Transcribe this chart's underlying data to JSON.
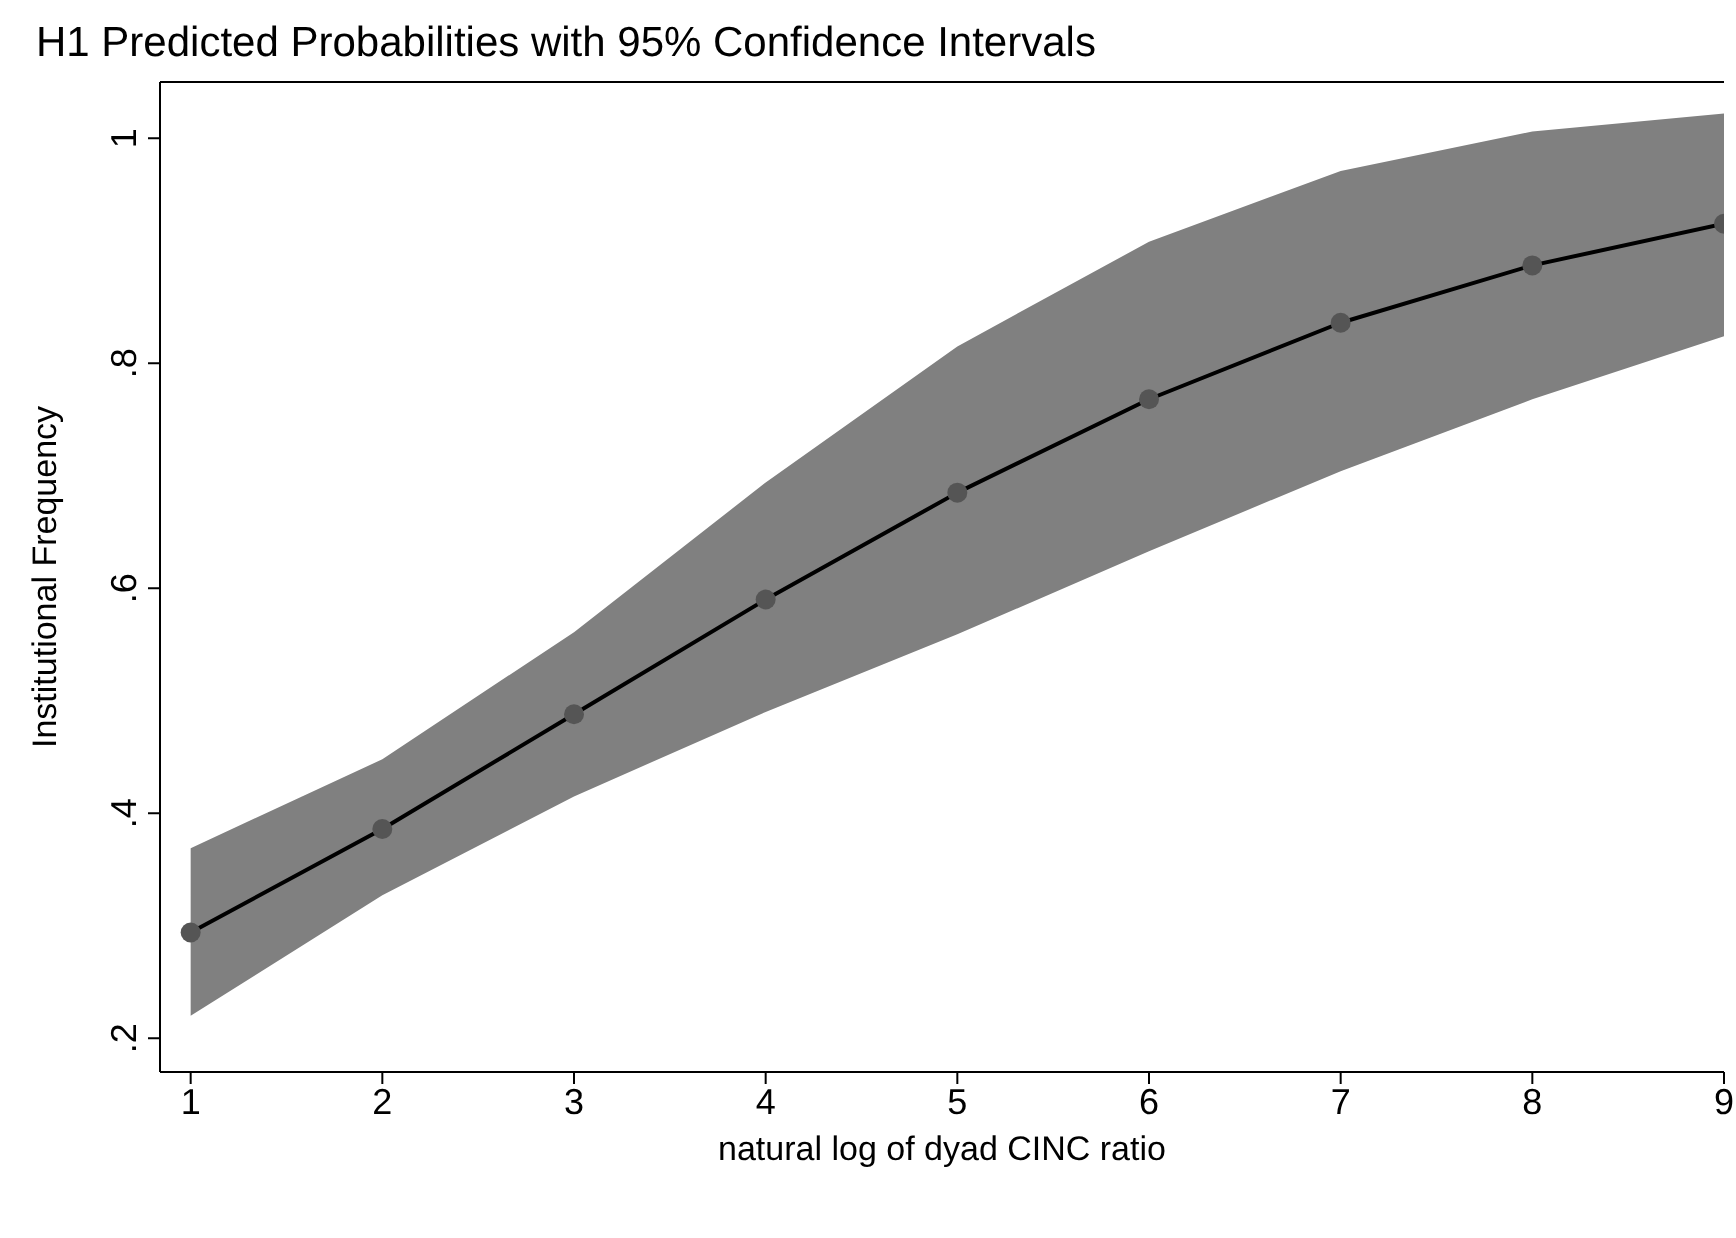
{
  "chart_data": {
    "type": "line",
    "title": "H1 Predicted Probabilities with 95% Confidence Intervals",
    "xlabel": "natural log of dyad CINC ratio",
    "ylabel": "Institutional Frequency",
    "x": [
      1,
      2,
      3,
      4,
      5,
      6,
      7,
      8,
      9
    ],
    "series": [
      {
        "color": "#000000",
        "values": [
          0.294,
          0.386,
          0.488,
          0.59,
          0.685,
          0.768,
          0.836,
          0.887,
          0.924
        ],
        "lower": [
          0.22,
          0.327,
          0.415,
          0.49,
          0.559,
          0.633,
          0.704,
          0.768,
          0.824
        ],
        "upper": [
          0.369,
          0.448,
          0.561,
          0.694,
          0.815,
          0.908,
          0.971,
          1.006,
          1.022
        ]
      }
    ],
    "xlim": [
      0.84,
      9
    ],
    "ylim": [
      0.17,
      1.05
    ],
    "xticks": [
      1,
      2,
      3,
      4,
      5,
      6,
      7,
      8,
      9
    ],
    "yticks": [
      {
        "value": 0.2,
        "label": ".2"
      },
      {
        "value": 0.4,
        "label": ".4"
      },
      {
        "value": 0.6,
        "label": ".6"
      },
      {
        "value": 0.8,
        "label": ".8"
      },
      1
    ],
    "marker": "circle",
    "line_style": "solid"
  }
}
